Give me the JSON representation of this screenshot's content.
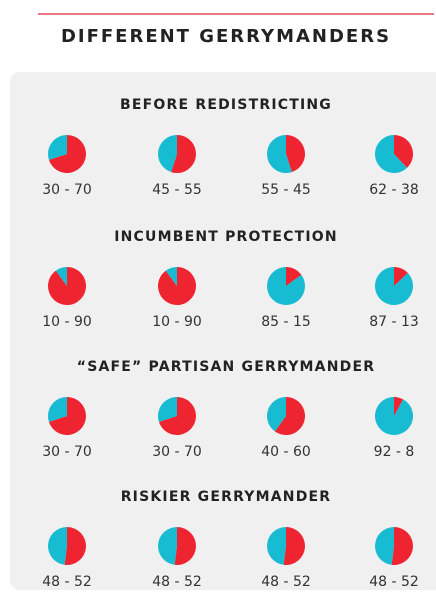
{
  "title": "DIFFERENT GERRYMANDERS",
  "chart_data": [
    {
      "type": "pie",
      "title": "BEFORE REDISTRICTING",
      "colors": [
        "#17bcd2",
        "#ee2431"
      ],
      "pies": [
        {
          "values": [
            30,
            70
          ],
          "label": "30 - 70"
        },
        {
          "values": [
            45,
            55
          ],
          "label": "45 - 55"
        },
        {
          "values": [
            55,
            45
          ],
          "label": "55 - 45"
        },
        {
          "values": [
            62,
            38
          ],
          "label": "62 - 38"
        }
      ]
    },
    {
      "type": "pie",
      "title": "INCUMBENT PROTECTION",
      "colors": [
        "#17bcd2",
        "#ee2431"
      ],
      "pies": [
        {
          "values": [
            10,
            90
          ],
          "label": "10 - 90"
        },
        {
          "values": [
            10,
            90
          ],
          "label": "10 - 90"
        },
        {
          "values": [
            85,
            15
          ],
          "label": "85 - 15"
        },
        {
          "values": [
            87,
            13
          ],
          "label": "87 - 13"
        }
      ]
    },
    {
      "type": "pie",
      "title": "“SAFE” PARTISAN GERRYMANDER",
      "colors": [
        "#17bcd2",
        "#ee2431"
      ],
      "pies": [
        {
          "values": [
            30,
            70
          ],
          "label": "30 - 70"
        },
        {
          "values": [
            30,
            70
          ],
          "label": "30 - 70"
        },
        {
          "values": [
            40,
            60
          ],
          "label": "40 - 60"
        },
        {
          "values": [
            92,
            8
          ],
          "label": "92 - 8"
        }
      ]
    },
    {
      "type": "pie",
      "title": "RISKIER GERRYMANDER",
      "colors": [
        "#17bcd2",
        "#ee2431"
      ],
      "pies": [
        {
          "values": [
            48,
            52
          ],
          "label": "48 - 52"
        },
        {
          "values": [
            48,
            52
          ],
          "label": "48 - 52"
        },
        {
          "values": [
            48,
            52
          ],
          "label": "48 - 52"
        },
        {
          "values": [
            48,
            52
          ],
          "label": "48 - 52"
        }
      ]
    }
  ]
}
